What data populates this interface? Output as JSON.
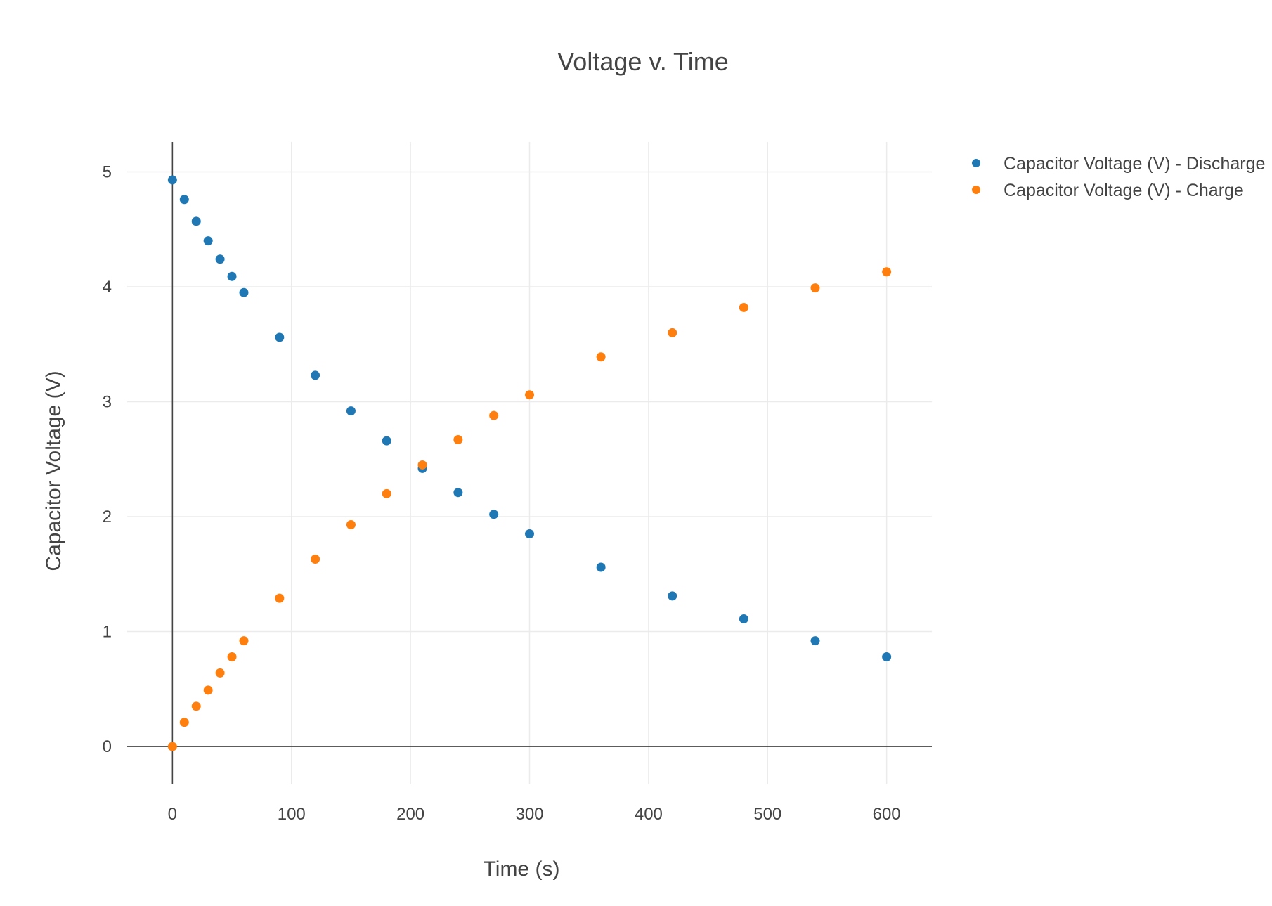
{
  "chart_data": {
    "type": "scatter",
    "title": "Voltage v. Time",
    "xlabel": "Time (s)",
    "ylabel": "Capacitor Voltage (V)",
    "xlim": [
      -38,
      638
    ],
    "ylim": [
      -0.33,
      5.26
    ],
    "xticks": [
      0,
      100,
      200,
      300,
      400,
      500,
      600
    ],
    "yticks": [
      0,
      1,
      2,
      3,
      4,
      5
    ],
    "grid": true,
    "legend_position": "top-right",
    "series": [
      {
        "name": "Capacitor Voltage (V) - Discharge",
        "color": "#1f77b4",
        "x": [
          0,
          10,
          20,
          30,
          40,
          50,
          60,
          90,
          120,
          150,
          180,
          210,
          240,
          270,
          300,
          360,
          420,
          480,
          540,
          600
        ],
        "y": [
          4.93,
          4.76,
          4.57,
          4.4,
          4.24,
          4.09,
          3.95,
          3.56,
          3.23,
          2.92,
          2.66,
          2.42,
          2.21,
          2.02,
          1.85,
          1.56,
          1.31,
          1.11,
          0.92,
          0.78
        ]
      },
      {
        "name": "Capacitor Voltage (V) - Charge",
        "color": "#ff7f0e",
        "x": [
          0,
          10,
          20,
          30,
          40,
          50,
          60,
          90,
          120,
          150,
          180,
          210,
          240,
          270,
          300,
          360,
          420,
          480,
          540,
          600
        ],
        "y": [
          0.0,
          0.21,
          0.35,
          0.49,
          0.64,
          0.78,
          0.92,
          1.29,
          1.63,
          1.93,
          2.2,
          2.45,
          2.67,
          2.88,
          3.06,
          3.39,
          3.6,
          3.82,
          3.99,
          4.13
        ]
      }
    ]
  }
}
